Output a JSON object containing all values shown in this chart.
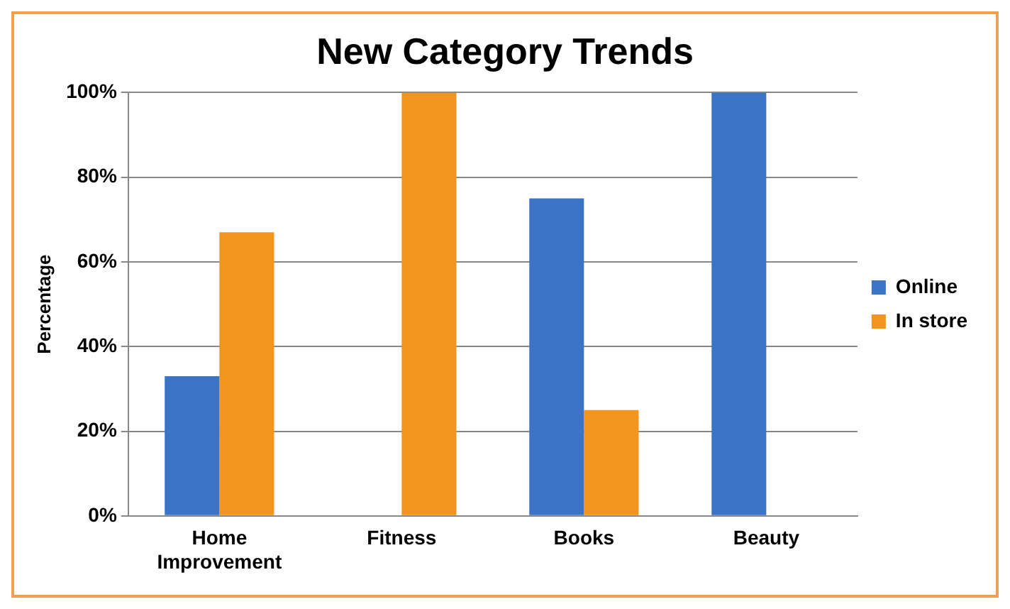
{
  "chart_data": {
    "type": "bar",
    "title": "New Category Trends",
    "ylabel": "Percentage",
    "categories": [
      "Home Improvement",
      "Fitness",
      "Books",
      "Beauty"
    ],
    "series": [
      {
        "name": "Online",
        "color": "#3b74c4",
        "values": [
          33,
          0,
          75,
          100
        ]
      },
      {
        "name": "In store",
        "color": "#f2951f",
        "values": [
          67,
          100,
          25,
          0
        ]
      }
    ],
    "ylim": [
      0,
      100
    ],
    "yticks": [
      {
        "value": 0,
        "label": "0%"
      },
      {
        "value": 20,
        "label": "20%"
      },
      {
        "value": 40,
        "label": "40%"
      },
      {
        "value": 60,
        "label": "60%"
      },
      {
        "value": 80,
        "label": "80%"
      },
      {
        "value": 100,
        "label": "100%"
      }
    ],
    "grid": "y",
    "legend": "right"
  }
}
